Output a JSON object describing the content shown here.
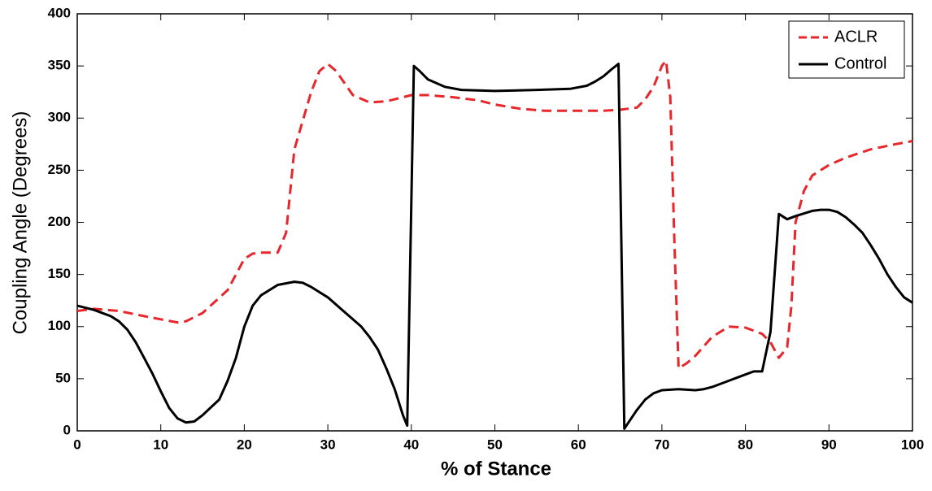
{
  "chart_data": {
    "type": "line",
    "xlabel": "% of Stance",
    "ylabel": "Coupling Angle (Degrees)",
    "xlim": [
      0,
      100
    ],
    "xticks": [
      0,
      10,
      20,
      30,
      40,
      50,
      60,
      70,
      80,
      90,
      100
    ],
    "ylim": [
      0,
      400
    ],
    "yticks": [
      0,
      50,
      100,
      150,
      200,
      250,
      300,
      350,
      400
    ],
    "legend": "upper right",
    "series": [
      {
        "name": "ACLR",
        "color": "#e8262b",
        "dash": true,
        "x": [
          0,
          2,
          5,
          8,
          10,
          12,
          13,
          15,
          18,
          20,
          21,
          22,
          24,
          25,
          26,
          28,
          29,
          30,
          31,
          33,
          35,
          37,
          39,
          40,
          42,
          45,
          48,
          50,
          53,
          56,
          60,
          63,
          65,
          67,
          68,
          69,
          70,
          70.5,
          71,
          71.5,
          72,
          73,
          74,
          76,
          78,
          80,
          82,
          83,
          84,
          85,
          85.5,
          86,
          87,
          88,
          90,
          92,
          95,
          98,
          100
        ],
        "values": [
          115,
          117,
          115,
          110,
          107,
          104,
          105,
          113,
          135,
          165,
          170,
          171,
          171,
          190,
          270,
          325,
          345,
          352,
          345,
          322,
          315,
          316,
          320,
          322,
          322,
          320,
          317,
          313,
          309,
          307,
          307,
          307,
          308,
          310,
          318,
          330,
          350,
          355,
          320,
          180,
          60,
          65,
          72,
          90,
          100,
          99,
          93,
          85,
          70,
          80,
          120,
          200,
          230,
          245,
          255,
          262,
          270,
          275,
          278
        ]
      },
      {
        "name": "Control",
        "color": "#000000",
        "dash": false,
        "x": [
          0,
          2,
          4,
          5,
          6,
          7,
          8,
          9,
          10,
          11,
          12,
          13,
          14,
          15,
          17,
          18,
          19,
          20,
          21,
          22,
          24,
          26,
          27,
          28,
          30,
          32,
          34,
          35,
          36,
          37,
          38,
          39,
          39.5,
          40.3,
          41,
          42,
          44,
          46,
          50,
          55,
          59,
          61,
          62,
          63,
          64,
          64.8,
          65.5,
          66,
          67,
          68,
          69,
          70,
          72,
          74,
          75,
          76,
          78,
          80,
          81,
          82,
          83,
          84,
          85,
          86,
          88,
          89,
          90,
          91,
          92,
          93,
          94,
          95,
          96,
          97,
          98,
          99,
          100
        ],
        "values": [
          120,
          116,
          110,
          105,
          97,
          85,
          70,
          55,
          38,
          22,
          12,
          8,
          9,
          15,
          30,
          48,
          70,
          100,
          120,
          130,
          140,
          143,
          142,
          138,
          128,
          114,
          100,
          90,
          78,
          60,
          40,
          15,
          5,
          350,
          345,
          337,
          330,
          327,
          326,
          327,
          328,
          331,
          335,
          340,
          347,
          352,
          2,
          8,
          20,
          30,
          36,
          39,
          40,
          39,
          40,
          42,
          48,
          54,
          57,
          57,
          95,
          208,
          203,
          206,
          211,
          212,
          212,
          210,
          205,
          198,
          190,
          178,
          165,
          150,
          138,
          128,
          123
        ]
      }
    ]
  }
}
